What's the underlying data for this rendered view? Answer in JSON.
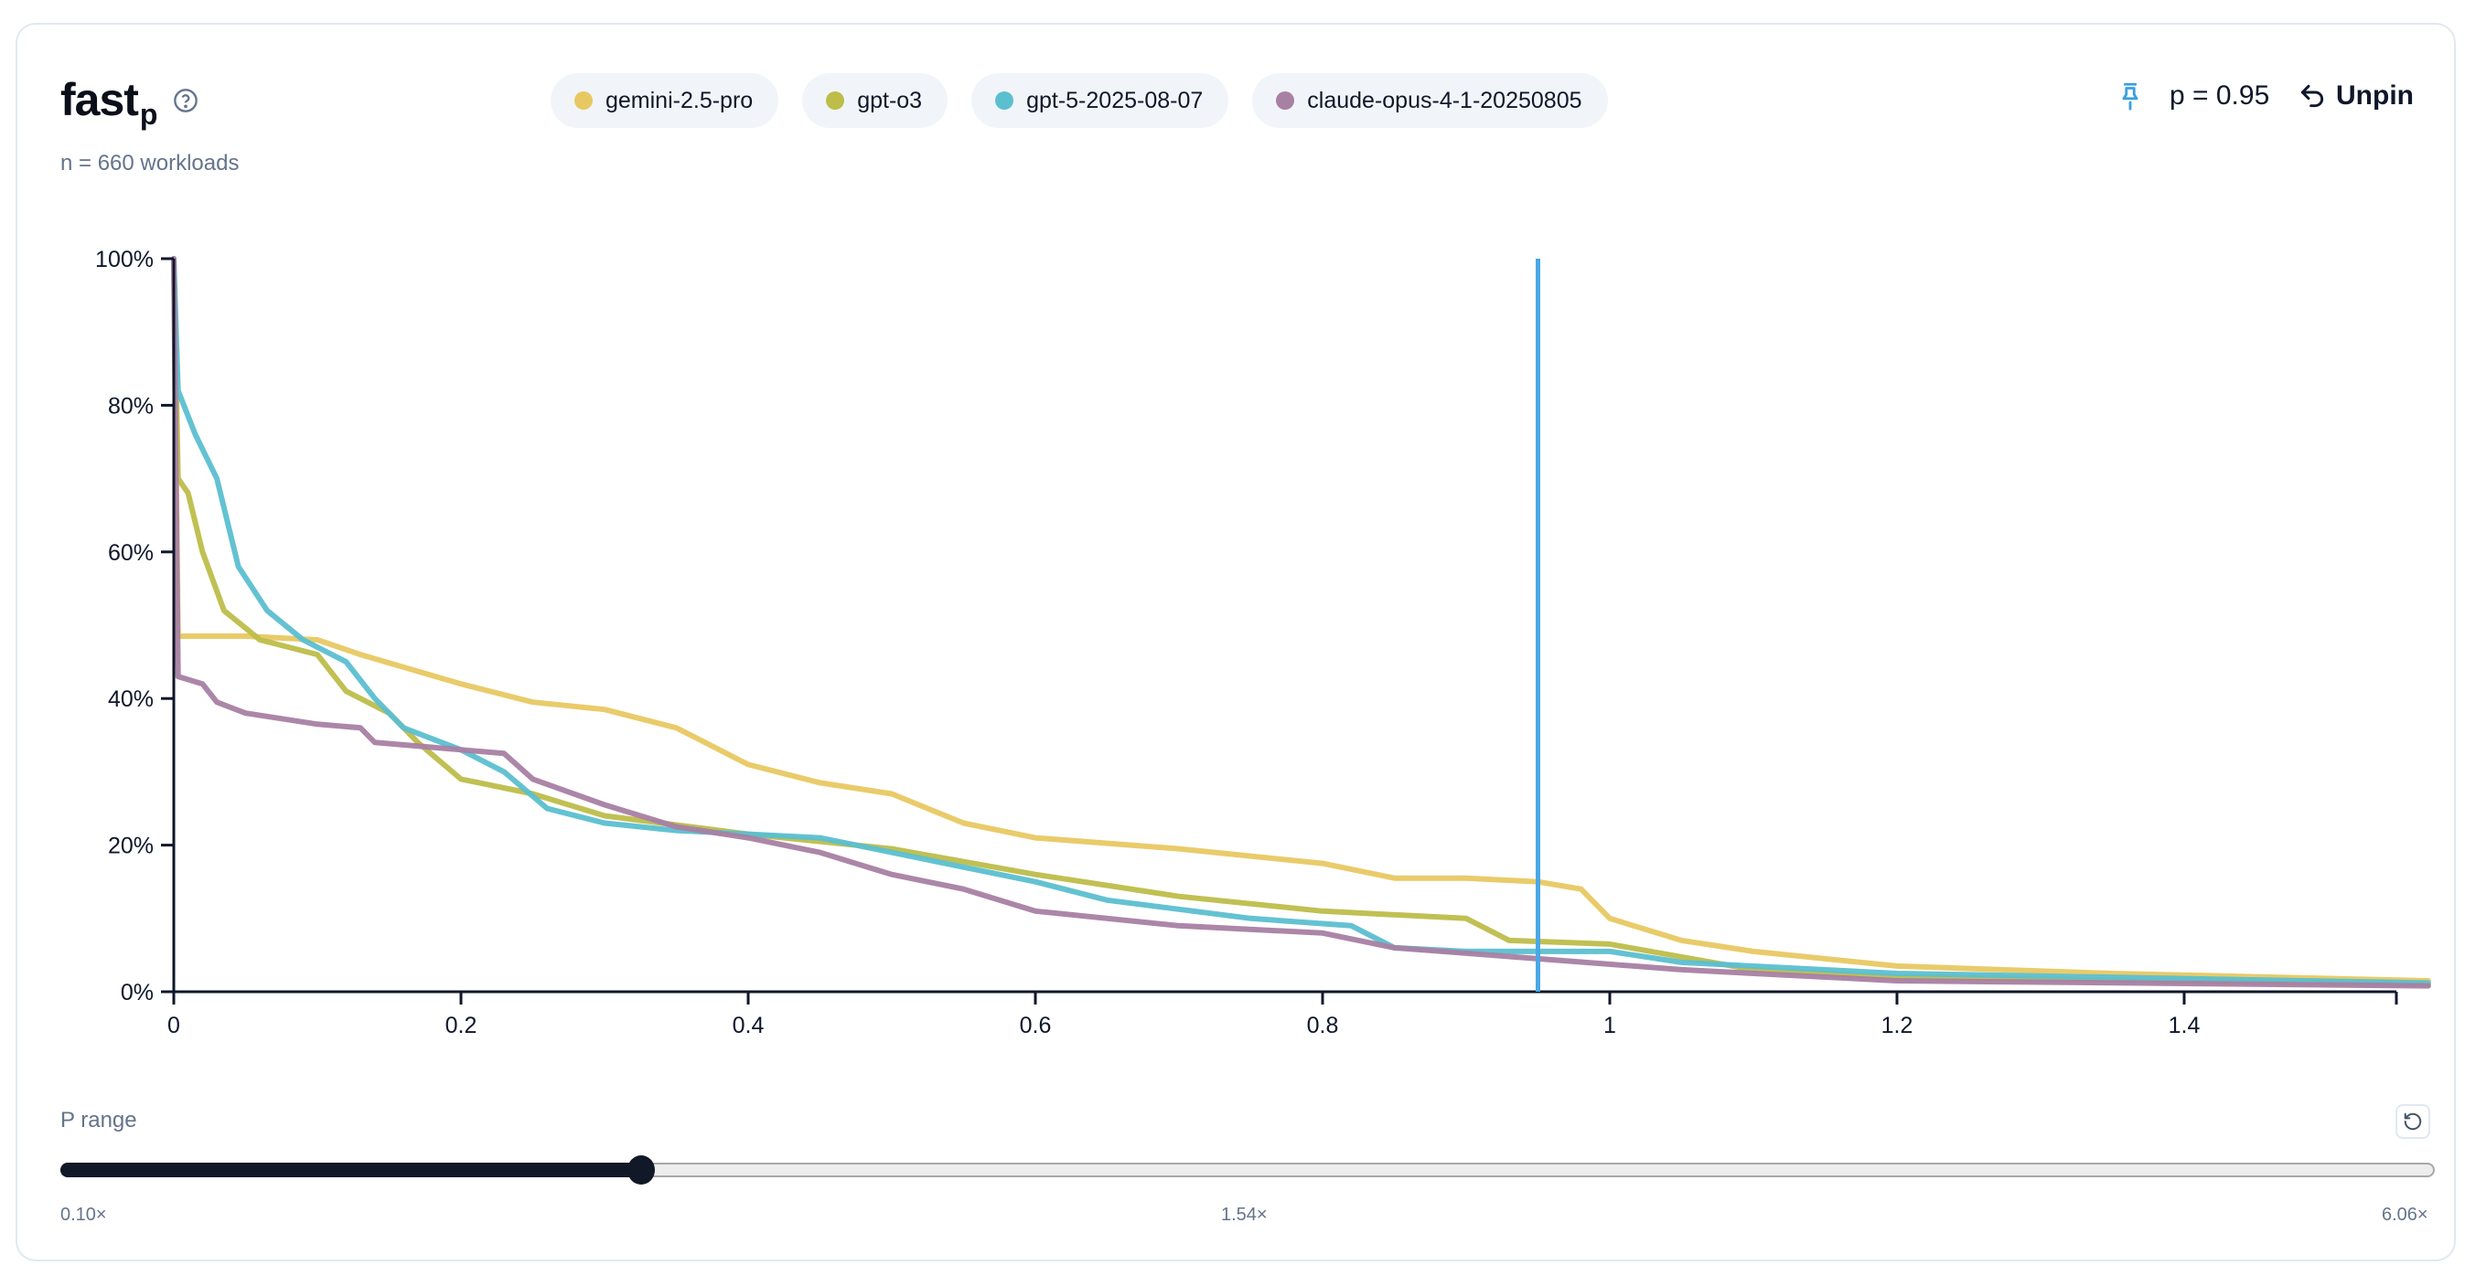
{
  "header": {
    "title": "fast",
    "title_sub": "p",
    "subtitle": "n = 660 workloads",
    "help_icon": "question-circle-icon"
  },
  "legend": [
    {
      "label": "gemini-2.5-pro",
      "color": "#e8c862"
    },
    {
      "label": "gpt-o3",
      "color": "#bdbd4a"
    },
    {
      "label": "gpt-5-2025-08-07",
      "color": "#5bbfd0"
    },
    {
      "label": "claude-opus-4-1-20250805",
      "color": "#a880a3"
    }
  ],
  "pin": {
    "icon": "pin-icon",
    "label": "p = 0.95",
    "unpin_label": "Unpin",
    "unpin_icon": "undo-icon",
    "marker_color": "#4aa8e6"
  },
  "slider": {
    "label": "P range",
    "min_label": "0.10×",
    "mid_label": "1.54×",
    "max_label": "6.06×",
    "reset_icon": "reset-icon"
  },
  "chart_data": {
    "type": "line",
    "title": "fast_p",
    "subtitle": "n = 660 workloads",
    "xlabel": "",
    "ylabel": "",
    "x_ticks": [
      "0",
      "0.2",
      "0.4",
      "0.6",
      "0.8",
      "1",
      "1.2",
      "1.4"
    ],
    "y_ticks": [
      "0%",
      "20%",
      "40%",
      "60%",
      "80%",
      "100%"
    ],
    "xlim": [
      0,
      1.57
    ],
    "ylim": [
      0,
      100
    ],
    "grid": false,
    "legend_position": "top",
    "annotations": [
      {
        "type": "vline",
        "x": 0.95,
        "label": "p = 0.95"
      }
    ],
    "series": [
      {
        "name": "gemini-2.5-pro",
        "color": "#e8c862",
        "x": [
          0,
          0.003,
          0.05,
          0.1,
          0.13,
          0.2,
          0.25,
          0.3,
          0.35,
          0.4,
          0.45,
          0.5,
          0.55,
          0.6,
          0.7,
          0.8,
          0.85,
          0.9,
          0.95,
          0.98,
          1.0,
          1.05,
          1.1,
          1.2,
          1.35,
          1.57
        ],
        "y": [
          100,
          48.5,
          48.5,
          48,
          46,
          42,
          39.5,
          38.5,
          36,
          31,
          28.5,
          27,
          23,
          21,
          19.5,
          17.5,
          15.5,
          15.5,
          15,
          14,
          10,
          7,
          5.5,
          3.5,
          2.5,
          1.5
        ]
      },
      {
        "name": "gpt-o3",
        "color": "#bdbd4a",
        "x": [
          0,
          0.003,
          0.01,
          0.02,
          0.035,
          0.06,
          0.1,
          0.12,
          0.15,
          0.17,
          0.2,
          0.25,
          0.3,
          0.4,
          0.5,
          0.6,
          0.7,
          0.8,
          0.9,
          0.93,
          1.0,
          1.1,
          1.2,
          1.57
        ],
        "y": [
          100,
          70,
          68,
          60,
          52,
          48,
          46,
          41,
          38,
          34,
          29,
          27,
          24,
          21.5,
          19.5,
          16,
          13,
          11,
          10,
          7,
          6.5,
          3,
          2,
          1
        ]
      },
      {
        "name": "gpt-5-2025-08-07",
        "color": "#5bbfd0",
        "x": [
          0,
          0.003,
          0.015,
          0.03,
          0.045,
          0.065,
          0.09,
          0.12,
          0.14,
          0.16,
          0.2,
          0.23,
          0.26,
          0.3,
          0.35,
          0.45,
          0.55,
          0.6,
          0.65,
          0.75,
          0.82,
          0.85,
          0.9,
          1.0,
          1.05,
          1.2,
          1.57
        ],
        "y": [
          100,
          82,
          76,
          70,
          58,
          52,
          48,
          45,
          40,
          36,
          33,
          30,
          25,
          23,
          22,
          21,
          17,
          15,
          12.5,
          10,
          9,
          6,
          5.5,
          5.5,
          4,
          2.5,
          1.2
        ]
      },
      {
        "name": "claude-opus-4-1-20250805",
        "color": "#a880a3",
        "x": [
          0,
          0.003,
          0.02,
          0.03,
          0.05,
          0.1,
          0.13,
          0.14,
          0.2,
          0.23,
          0.25,
          0.3,
          0.35,
          0.4,
          0.45,
          0.5,
          0.55,
          0.6,
          0.7,
          0.8,
          0.85,
          0.95,
          1.05,
          1.2,
          1.57
        ],
        "y": [
          100,
          43,
          42,
          39.5,
          38,
          36.5,
          36,
          34,
          33,
          32.5,
          29,
          25.5,
          22.5,
          21,
          19,
          16,
          14,
          11,
          9,
          8,
          6,
          4.5,
          3,
          1.5,
          0.8
        ]
      }
    ]
  }
}
